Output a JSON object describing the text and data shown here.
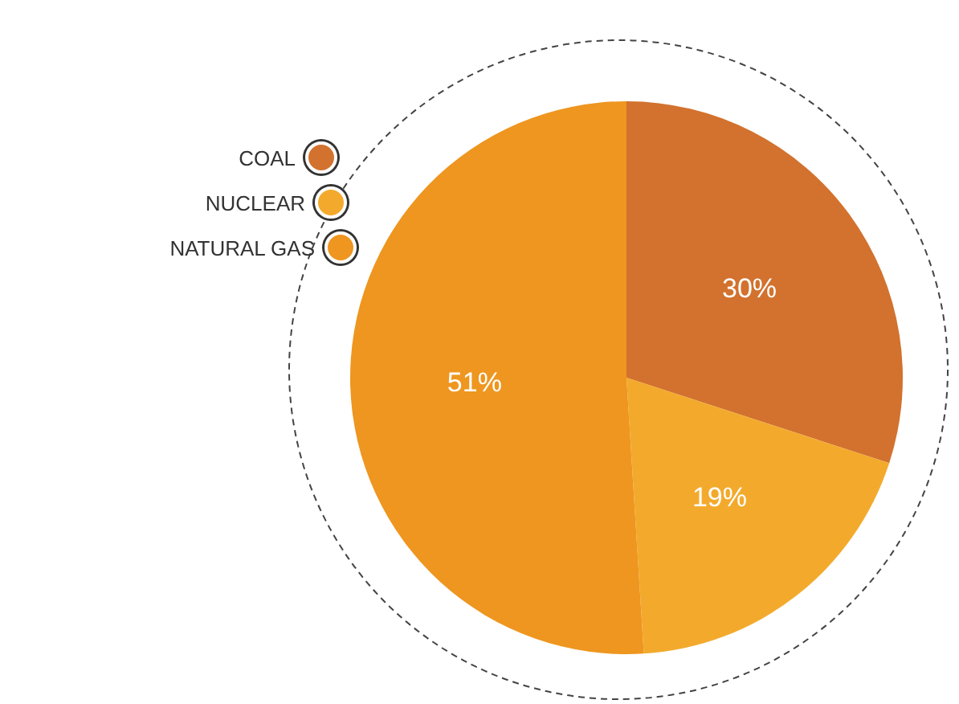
{
  "chart_data": {
    "type": "pie",
    "categories": [
      "COAL",
      "NUCLEAR",
      "NATURAL GAS"
    ],
    "values": [
      30,
      19,
      51
    ],
    "colors": [
      "#d2722e",
      "#f3aa2c",
      "#ee961f"
    ],
    "value_labels": [
      "30%",
      "19%",
      "51%"
    ],
    "legend": "left"
  }
}
